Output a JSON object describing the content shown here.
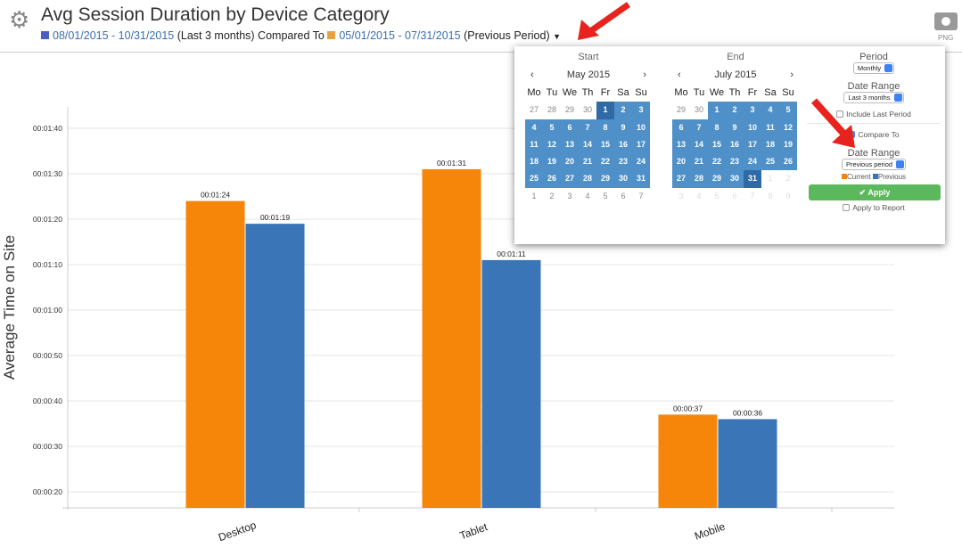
{
  "header": {
    "title": "Avg Session Duration by Device Category",
    "current_range": "08/01/2015 - 10/31/2015",
    "current_label": "(Last 3 months)",
    "compared_to": "Compared To",
    "previous_range": "05/01/2015 - 07/31/2015",
    "previous_label": "(Previous Period)",
    "export_label": "PNG",
    "current_color": "#4a5fc1",
    "previous_color": "#e8a33d"
  },
  "popup": {
    "start": {
      "title": "Start",
      "month": "May 2015",
      "prev": "‹",
      "next": "›",
      "dows": [
        "Mo",
        "Tu",
        "We",
        "Th",
        "Fr",
        "Sa",
        "Su"
      ],
      "days": [
        [
          "27",
          "o"
        ],
        [
          "28",
          "o"
        ],
        [
          "29",
          "o"
        ],
        [
          "30",
          "o"
        ],
        [
          "1",
          "s"
        ],
        [
          "2",
          "i"
        ],
        [
          "3",
          "i"
        ],
        [
          "4",
          "i"
        ],
        [
          "5",
          "i"
        ],
        [
          "6",
          "i"
        ],
        [
          "7",
          "i"
        ],
        [
          "8",
          "i"
        ],
        [
          "9",
          "i"
        ],
        [
          "10",
          "i"
        ],
        [
          "11",
          "i"
        ],
        [
          "12",
          "i"
        ],
        [
          "13",
          "i"
        ],
        [
          "14",
          "i"
        ],
        [
          "15",
          "i"
        ],
        [
          "16",
          "i"
        ],
        [
          "17",
          "i"
        ],
        [
          "18",
          "i"
        ],
        [
          "19",
          "i"
        ],
        [
          "20",
          "i"
        ],
        [
          "21",
          "i"
        ],
        [
          "22",
          "i"
        ],
        [
          "23",
          "i"
        ],
        [
          "24",
          "i"
        ],
        [
          "25",
          "i"
        ],
        [
          "26",
          "i"
        ],
        [
          "27",
          "i"
        ],
        [
          "28",
          "i"
        ],
        [
          "29",
          "i"
        ],
        [
          "30",
          "i"
        ],
        [
          "31",
          "i"
        ],
        [
          "1",
          "o"
        ],
        [
          "2",
          "o"
        ],
        [
          "3",
          "o"
        ],
        [
          "4",
          "o"
        ],
        [
          "5",
          "o"
        ],
        [
          "6",
          "o"
        ],
        [
          "7",
          "o"
        ]
      ]
    },
    "end": {
      "title": "End",
      "month": "July 2015",
      "prev": "‹",
      "next": "›",
      "dows": [
        "Mo",
        "Tu",
        "We",
        "Th",
        "Fr",
        "Sa",
        "Su"
      ],
      "days": [
        [
          "29",
          "o"
        ],
        [
          "30",
          "o"
        ],
        [
          "1",
          "i"
        ],
        [
          "2",
          "i"
        ],
        [
          "3",
          "i"
        ],
        [
          "4",
          "i"
        ],
        [
          "5",
          "i"
        ],
        [
          "6",
          "i"
        ],
        [
          "7",
          "i"
        ],
        [
          "8",
          "i"
        ],
        [
          "9",
          "i"
        ],
        [
          "10",
          "i"
        ],
        [
          "11",
          "i"
        ],
        [
          "12",
          "i"
        ],
        [
          "13",
          "i"
        ],
        [
          "14",
          "i"
        ],
        [
          "15",
          "i"
        ],
        [
          "16",
          "i"
        ],
        [
          "17",
          "i"
        ],
        [
          "18",
          "i"
        ],
        [
          "19",
          "i"
        ],
        [
          "20",
          "i"
        ],
        [
          "21",
          "i"
        ],
        [
          "22",
          "i"
        ],
        [
          "23",
          "i"
        ],
        [
          "24",
          "i"
        ],
        [
          "25",
          "i"
        ],
        [
          "26",
          "i"
        ],
        [
          "27",
          "i"
        ],
        [
          "28",
          "i"
        ],
        [
          "29",
          "i"
        ],
        [
          "30",
          "i"
        ],
        [
          "31",
          "s"
        ],
        [
          "1",
          "f"
        ],
        [
          "2",
          "f"
        ],
        [
          "3",
          "f"
        ],
        [
          "4",
          "f"
        ],
        [
          "5",
          "f"
        ],
        [
          "6",
          "f"
        ],
        [
          "7",
          "f"
        ],
        [
          "8",
          "f"
        ],
        [
          "9",
          "f"
        ]
      ]
    },
    "period_label": "Period",
    "period_value": "Monthly",
    "date_range_label": "Date Range",
    "date_range_value": "Last 3 months",
    "include_last_period": "Include Last Period",
    "include_last_period_checked": false,
    "compare_to": "Compare To",
    "compare_to_checked": true,
    "compare_range_label": "Date Range",
    "compare_range_value": "Previous period",
    "legend_current": "Current",
    "legend_previous": "Previous",
    "apply": "✔ Apply",
    "apply_to_report": "Apply to Report",
    "apply_to_report_checked": false
  },
  "chart_data": {
    "type": "bar",
    "title": "Avg Session Duration by Device Category",
    "xlabel": "",
    "ylabel": "Average Time on Site",
    "categories": [
      "Desktop",
      "Tablet",
      "Mobile"
    ],
    "series": [
      {
        "name": "Current",
        "color": "#f5860a",
        "values": [
          84,
          91,
          37
        ],
        "labels": [
          "00:01:24",
          "00:01:31",
          "00:00:37"
        ]
      },
      {
        "name": "Previous",
        "color": "#3a76b7",
        "values": [
          79,
          71,
          36
        ],
        "labels": [
          "00:01:19",
          "00:01:11",
          "00:00:36"
        ]
      }
    ],
    "yticks": [
      20,
      30,
      40,
      50,
      60,
      70,
      80,
      90,
      100
    ],
    "ytick_labels": [
      "00:00:20",
      "00:00:30",
      "00:00:40",
      "00:00:50",
      "00:01:00",
      "00:01:10",
      "00:01:20",
      "00:01:30",
      "00:01:40"
    ],
    "ylim": [
      16.5,
      100
    ],
    "grid": true,
    "legend": "none"
  }
}
